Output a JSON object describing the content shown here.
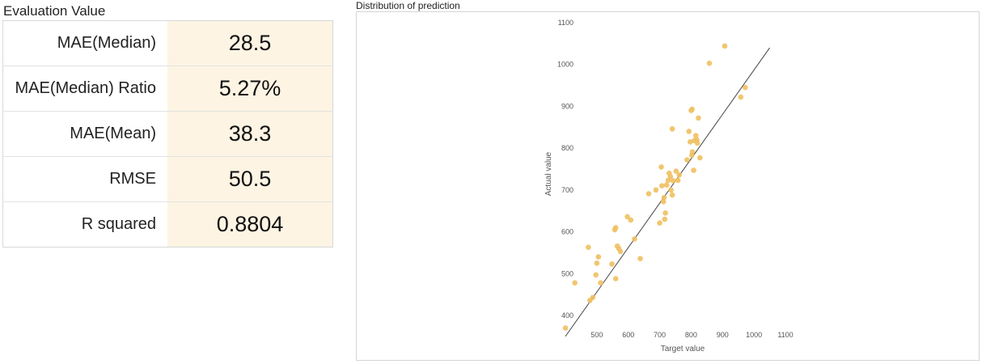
{
  "evaluation": {
    "title": "Evaluation Value",
    "rows": [
      {
        "label": "MAE(Median)",
        "value": "28.5"
      },
      {
        "label": "MAE(Median) Ratio",
        "value": "5.27%"
      },
      {
        "label": "MAE(Mean)",
        "value": "38.3"
      },
      {
        "label": "RMSE",
        "value": "50.5"
      },
      {
        "label": "R squared",
        "value": "0.8804"
      }
    ]
  },
  "chart_data": {
    "type": "scatter",
    "title": "Distribution of prediction",
    "xlabel": "Target value",
    "ylabel": "Actual value",
    "xlim": [
      400,
      1100
    ],
    "ylim": [
      400,
      1100
    ],
    "x_ticks": [
      500,
      600,
      700,
      800,
      900,
      1000,
      1100
    ],
    "y_ticks": [
      400,
      500,
      600,
      700,
      800,
      900,
      1000,
      1100
    ],
    "point_color": "#f0c060",
    "line_color": "#444444",
    "reference_line": {
      "x": [
        400,
        1050
      ],
      "y": [
        350,
        1040
      ]
    },
    "points": [
      {
        "x": 400,
        "y": 370
      },
      {
        "x": 478,
        "y": 436
      },
      {
        "x": 487,
        "y": 443
      },
      {
        "x": 473,
        "y": 563
      },
      {
        "x": 430,
        "y": 478
      },
      {
        "x": 497,
        "y": 497
      },
      {
        "x": 500,
        "y": 525
      },
      {
        "x": 505,
        "y": 540
      },
      {
        "x": 512,
        "y": 478
      },
      {
        "x": 548,
        "y": 523
      },
      {
        "x": 560,
        "y": 488
      },
      {
        "x": 557,
        "y": 605
      },
      {
        "x": 560,
        "y": 610
      },
      {
        "x": 565,
        "y": 566
      },
      {
        "x": 570,
        "y": 560
      },
      {
        "x": 575,
        "y": 553
      },
      {
        "x": 620,
        "y": 583
      },
      {
        "x": 638,
        "y": 536
      },
      {
        "x": 597,
        "y": 636
      },
      {
        "x": 608,
        "y": 628
      },
      {
        "x": 665,
        "y": 691
      },
      {
        "x": 688,
        "y": 700
      },
      {
        "x": 700,
        "y": 621
      },
      {
        "x": 707,
        "y": 710
      },
      {
        "x": 705,
        "y": 755
      },
      {
        "x": 712,
        "y": 672
      },
      {
        "x": 714,
        "y": 682
      },
      {
        "x": 716,
        "y": 630
      },
      {
        "x": 718,
        "y": 645
      },
      {
        "x": 722,
        "y": 712
      },
      {
        "x": 727,
        "y": 723
      },
      {
        "x": 730,
        "y": 740
      },
      {
        "x": 734,
        "y": 732
      },
      {
        "x": 736,
        "y": 700
      },
      {
        "x": 740,
        "y": 688
      },
      {
        "x": 743,
        "y": 722
      },
      {
        "x": 740,
        "y": 846
      },
      {
        "x": 752,
        "y": 745
      },
      {
        "x": 758,
        "y": 723
      },
      {
        "x": 762,
        "y": 736
      },
      {
        "x": 787,
        "y": 772
      },
      {
        "x": 793,
        "y": 840
      },
      {
        "x": 797,
        "y": 815
      },
      {
        "x": 800,
        "y": 890
      },
      {
        "x": 803,
        "y": 893
      },
      {
        "x": 802,
        "y": 783
      },
      {
        "x": 804,
        "y": 791
      },
      {
        "x": 808,
        "y": 747
      },
      {
        "x": 810,
        "y": 818
      },
      {
        "x": 815,
        "y": 830
      },
      {
        "x": 818,
        "y": 820
      },
      {
        "x": 820,
        "y": 812
      },
      {
        "x": 823,
        "y": 872
      },
      {
        "x": 828,
        "y": 777
      },
      {
        "x": 858,
        "y": 1003
      },
      {
        "x": 907,
        "y": 1044
      },
      {
        "x": 958,
        "y": 922
      },
      {
        "x": 972,
        "y": 945
      }
    ]
  }
}
